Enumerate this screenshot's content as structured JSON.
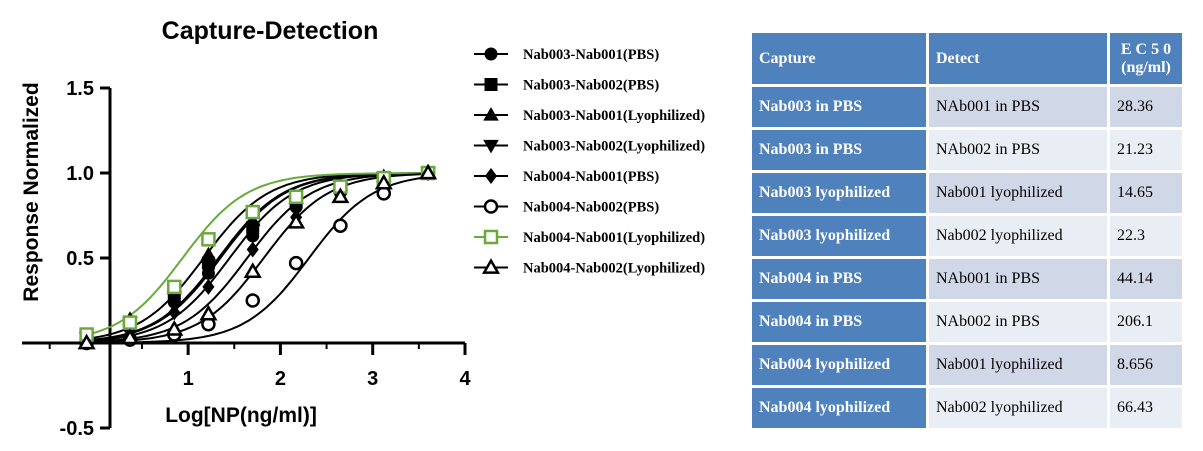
{
  "chart_data": {
    "type": "line",
    "title": "Capture-Detection",
    "xlabel": "Log[NP(ng/ml)]",
    "ylabel": "Response Normalized",
    "xlim": [
      -0.8,
      4
    ],
    "ylim": [
      -0.5,
      1.5
    ],
    "xticks": [
      "1",
      "2",
      "3",
      "4"
    ],
    "yticks": [
      "1.5",
      "1.0",
      "0.5",
      "-0.5"
    ],
    "legend_position": "right",
    "x": [
      -0.1,
      0.37,
      0.85,
      1.22,
      1.7,
      2.17,
      2.65,
      3.12,
      3.6
    ],
    "series": [
      {
        "name": "Nab003-Nab001(PBS)",
        "marker": "circle-filled",
        "color": "#000000",
        "ec50_log": 1.45,
        "values": [
          0.02,
          0.1,
          0.24,
          0.41,
          0.63,
          0.8,
          0.9,
          0.97,
          1.0
        ]
      },
      {
        "name": "Nab003-Nab002(PBS)",
        "marker": "square-filled",
        "color": "#000000",
        "ec50_log": 1.33,
        "values": [
          0.03,
          0.12,
          0.28,
          0.47,
          0.68,
          0.83,
          0.91,
          0.97,
          1.0
        ]
      },
      {
        "name": "Nab003-Nab001(Lyophilized)",
        "marker": "triangle-up-filled",
        "color": "#000000",
        "ec50_log": 1.17,
        "values": [
          0.04,
          0.14,
          0.32,
          0.52,
          0.72,
          0.85,
          0.93,
          0.98,
          1.0
        ]
      },
      {
        "name": "Nab003-Nab002(Lyophilized)",
        "marker": "triangle-down-filled",
        "color": "#000000",
        "ec50_log": 1.35,
        "values": [
          0.03,
          0.12,
          0.27,
          0.45,
          0.67,
          0.82,
          0.91,
          0.97,
          1.0
        ]
      },
      {
        "name": "Nab004-Nab001(PBS)",
        "marker": "diamond-filled",
        "color": "#000000",
        "ec50_log": 1.64,
        "values": [
          0.01,
          0.07,
          0.18,
          0.33,
          0.55,
          0.74,
          0.87,
          0.95,
          1.0
        ]
      },
      {
        "name": "Nab004-Nab002(PBS)",
        "marker": "circle-open",
        "color": "#000000",
        "ec50_log": 2.31,
        "values": [
          0.0,
          0.02,
          0.05,
          0.11,
          0.25,
          0.47,
          0.69,
          0.88,
          1.0
        ]
      },
      {
        "name": "Nab004-Nab001(Lyophilized)",
        "marker": "square-open",
        "color": "#6aaa3a",
        "ec50_log": 0.94,
        "values": [
          0.05,
          0.12,
          0.33,
          0.61,
          0.77,
          0.86,
          0.92,
          0.97,
          1.0
        ]
      },
      {
        "name": "Nab004-Nab002(Lyophilized)",
        "marker": "triangle-up-open",
        "color": "#000000",
        "ec50_log": 1.82,
        "values": [
          0.0,
          0.03,
          0.08,
          0.17,
          0.42,
          0.71,
          0.86,
          0.94,
          1.0
        ]
      }
    ]
  },
  "table": {
    "headers": [
      "Capture",
      "Detect",
      "E C 5 0",
      "(ng/ml)"
    ],
    "rows": [
      [
        "Nab003 in PBS",
        "NAb001 in PBS",
        "28.36"
      ],
      [
        "Nab003 in PBS",
        "NAb002 in PBS",
        "21.23"
      ],
      [
        "Nab003 lyophilized",
        "Nab001 lyophilized",
        "14.65"
      ],
      [
        "Nab003 lyophilized",
        "Nab002 lyophilized",
        "22.3"
      ],
      [
        "Nab004 in PBS",
        "NAb001 in PBS",
        "44.14"
      ],
      [
        "Nab004 in PBS",
        "NAb002 in PBS",
        "206.1"
      ],
      [
        "Nab004 lyophilized",
        "Nab001 lyophilized",
        "8.656"
      ],
      [
        "Nab004 lyophilized",
        "Nab002 lyophilized",
        "66.43"
      ]
    ]
  }
}
